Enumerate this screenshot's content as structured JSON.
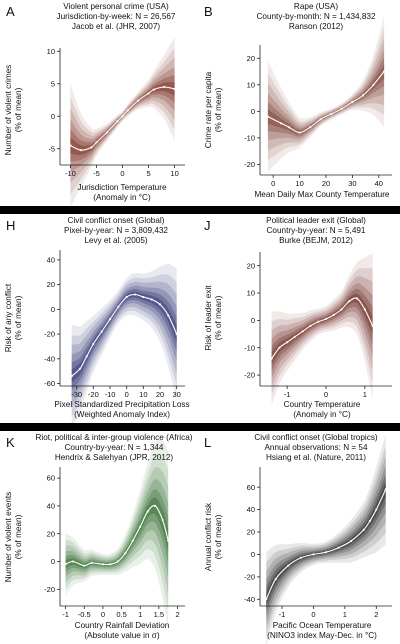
{
  "charts": [
    {
      "panel": "A",
      "heading": [
        "Violent personal crime (USA)",
        "Jurisdiction-by-week: N = 26,567",
        "Jacob et al. (JHR, 2007)"
      ],
      "xlabel": [
        "Jurisdiction Temperature",
        "(Anomaly in °C)"
      ],
      "ylabel": [
        "Number of violent crimes",
        "(% of mean)"
      ],
      "xticks": [
        -10,
        -5,
        0,
        5,
        10
      ],
      "yticks": [
        -5,
        0,
        5,
        10
      ],
      "color": "#7a2e22"
    },
    {
      "panel": "B",
      "heading": [
        "Rape (USA)",
        "County-by-month: N = 1,434,832",
        "Ranson (2012)"
      ],
      "xlabel": [
        "Mean Daily Max County Temperature"
      ],
      "ylabel": [
        "Crime rate per capita",
        "(% of mean)"
      ],
      "xticks": [
        0,
        10,
        20,
        30,
        40
      ],
      "yticks": [
        -20,
        -10,
        0,
        10,
        20
      ],
      "color": "#7a3a30"
    },
    {
      "panel": "H",
      "heading": [
        "Civil conflict onset (Global)",
        "Pixel-by-year: N = 3,809,432",
        "Levy et al. (2005)"
      ],
      "xlabel": [
        "Pixel Standardized Precipitation Loss",
        "(Weighted Anomaly Index)"
      ],
      "ylabel": [
        "Risk of any conflict",
        "(% of mean)"
      ],
      "xticks": [
        -30,
        -20,
        -10,
        0,
        10,
        20,
        30
      ],
      "yticks": [
        -60,
        -40,
        -20,
        0,
        20,
        40
      ],
      "color": "#2b2d6e"
    },
    {
      "panel": "J",
      "heading": [
        "Political leader exit (Global)",
        "Country-by-year: N = 5,491",
        "Burke (BEJM, 2012)"
      ],
      "xlabel": [
        "Country Temperature",
        "(Anomaly in °C)"
      ],
      "ylabel": [
        "Risk of leader exit",
        "(% of mean)"
      ],
      "xticks": [
        -1,
        0,
        1
      ],
      "yticks": [
        -20,
        -10,
        0,
        10,
        20
      ],
      "color": "#6e2a22"
    },
    {
      "panel": "K",
      "heading": [
        "Riot, political & inter-group violence (Africa)",
        "Country-by-year: N = 1,344",
        "Hendrix & Salehyan (JPR, 2012)"
      ],
      "xlabel": [
        "Country Rainfall Deviation",
        "(Absolute value in σ)"
      ],
      "ylabel": [
        "Number of violent events",
        "(% of mean)"
      ],
      "xticks": [
        -1,
        -0.5,
        0,
        0.5,
        1,
        1.5,
        2
      ],
      "yticks": [
        -20,
        0,
        20,
        40,
        60
      ],
      "color": "#2f6a2c"
    },
    {
      "panel": "L",
      "heading": [
        "Civil conflict onset (Global tropics)",
        "Annual observations: N = 54",
        "Hsiang et al. (Nature, 2011)"
      ],
      "xlabel": [
        "Pacific Ocean Temperature",
        "(NINO3 index May-Dec. in °C)"
      ],
      "ylabel": [
        "Annual conflict risk",
        "(% of mean)"
      ],
      "xticks": [
        -1,
        0,
        1,
        2
      ],
      "yticks": [
        -40,
        -20,
        0,
        20,
        40,
        60
      ],
      "color": "#222222"
    }
  ],
  "chart_data": [
    {
      "type": "area",
      "panel": "A",
      "xlim": [
        -12,
        12
      ],
      "ylim": [
        -7.5,
        10.5
      ],
      "x": [
        -10,
        -8,
        -6,
        -5,
        -3,
        -1,
        0,
        1,
        3,
        5,
        6,
        8,
        10
      ],
      "y": [
        -4.5,
        -5.2,
        -4.8,
        -4.0,
        -2.5,
        -0.8,
        0,
        0.9,
        2.4,
        3.5,
        4.1,
        4.5,
        4.2
      ],
      "band": [
        5.0,
        3.0,
        1.6,
        1.1,
        0.7,
        0.5,
        0.4,
        0.5,
        0.7,
        1.1,
        1.5,
        2.6,
        4.2
      ]
    },
    {
      "type": "area",
      "panel": "B",
      "xlim": [
        -5,
        45
      ],
      "ylim": [
        -24,
        25
      ],
      "x": [
        -2,
        3,
        6,
        10,
        14,
        18,
        22,
        26,
        30,
        34,
        38,
        42
      ],
      "y": [
        -2.0,
        -4.5,
        -6.0,
        -8.0,
        -6.0,
        -3.0,
        -1.0,
        1.0,
        3.5,
        6.0,
        10.0,
        15.0
      ],
      "band": [
        11.0,
        7.0,
        5.0,
        3.0,
        2.0,
        1.4,
        1.1,
        1.1,
        1.6,
        3.0,
        6.0,
        11.0
      ]
    },
    {
      "type": "area",
      "panel": "H",
      "xlim": [
        -40,
        35
      ],
      "ylim": [
        -62,
        48
      ],
      "x": [
        -33,
        -28,
        -24,
        -20,
        -15,
        -10,
        -5,
        0,
        5,
        10,
        15,
        20,
        25,
        30
      ],
      "y": [
        -54.0,
        -48.0,
        -38.0,
        -28.0,
        -18.0,
        -8.0,
        2.0,
        10.0,
        12.0,
        10.0,
        8.0,
        4.0,
        -5.0,
        -20.0
      ],
      "band": [
        22.0,
        18.0,
        15.0,
        12.0,
        10.0,
        8.0,
        7.0,
        8.0,
        9.0,
        10.0,
        12.0,
        16.0,
        22.0,
        28.0
      ]
    },
    {
      "type": "area",
      "panel": "J",
      "xlim": [
        -1.7,
        1.7
      ],
      "ylim": [
        -24,
        25
      ],
      "x": [
        -1.4,
        -1.2,
        -1.0,
        -0.8,
        -0.6,
        -0.4,
        -0.2,
        0,
        0.2,
        0.4,
        0.6,
        0.8,
        1.0,
        1.2
      ],
      "y": [
        -14.0,
        -10.0,
        -8.0,
        -6.0,
        -4.0,
        -2.0,
        -0.5,
        0.5,
        2.0,
        4.0,
        7.0,
        8.0,
        4.0,
        -2.0
      ],
      "band": [
        9.0,
        7.0,
        5.5,
        4.5,
        3.5,
        3.0,
        2.5,
        2.5,
        3.0,
        3.5,
        5.0,
        7.0,
        10.0,
        14.0
      ]
    },
    {
      "type": "area",
      "panel": "K",
      "xlim": [
        -1.15,
        2.2
      ],
      "ylim": [
        -32,
        68
      ],
      "x": [
        -1.0,
        -0.8,
        -0.5,
        -0.3,
        0,
        0.2,
        0.4,
        0.6,
        0.8,
        1.0,
        1.2,
        1.4,
        1.6,
        1.75
      ],
      "y": [
        -2.0,
        0.0,
        -3.0,
        -1.0,
        -2.0,
        -2.0,
        0.0,
        6.0,
        15.0,
        25.0,
        36.0,
        40.0,
        30.0,
        15.0
      ],
      "band": [
        12.0,
        9.0,
        6.0,
        5.0,
        4.0,
        4.0,
        5.0,
        7.0,
        10.0,
        14.0,
        18.0,
        24.0,
        30.0,
        34.0
      ]
    },
    {
      "type": "area",
      "panel": "L",
      "xlim": [
        -1.7,
        2.5
      ],
      "ylim": [
        -46,
        78
      ],
      "x": [
        -1.5,
        -1.2,
        -0.8,
        -0.4,
        0,
        0.4,
        0.8,
        1.2,
        1.6,
        1.8,
        2.0,
        2.3
      ],
      "y": [
        -40.0,
        -22.0,
        -10.0,
        -3.0,
        0.0,
        2.0,
        6.0,
        12.0,
        22.0,
        30.0,
        40.0,
        58.0
      ],
      "band": [
        22.0,
        16.0,
        10.0,
        7.0,
        5.0,
        5.0,
        7.0,
        10.0,
        13.0,
        16.0,
        20.0,
        26.0
      ]
    }
  ]
}
